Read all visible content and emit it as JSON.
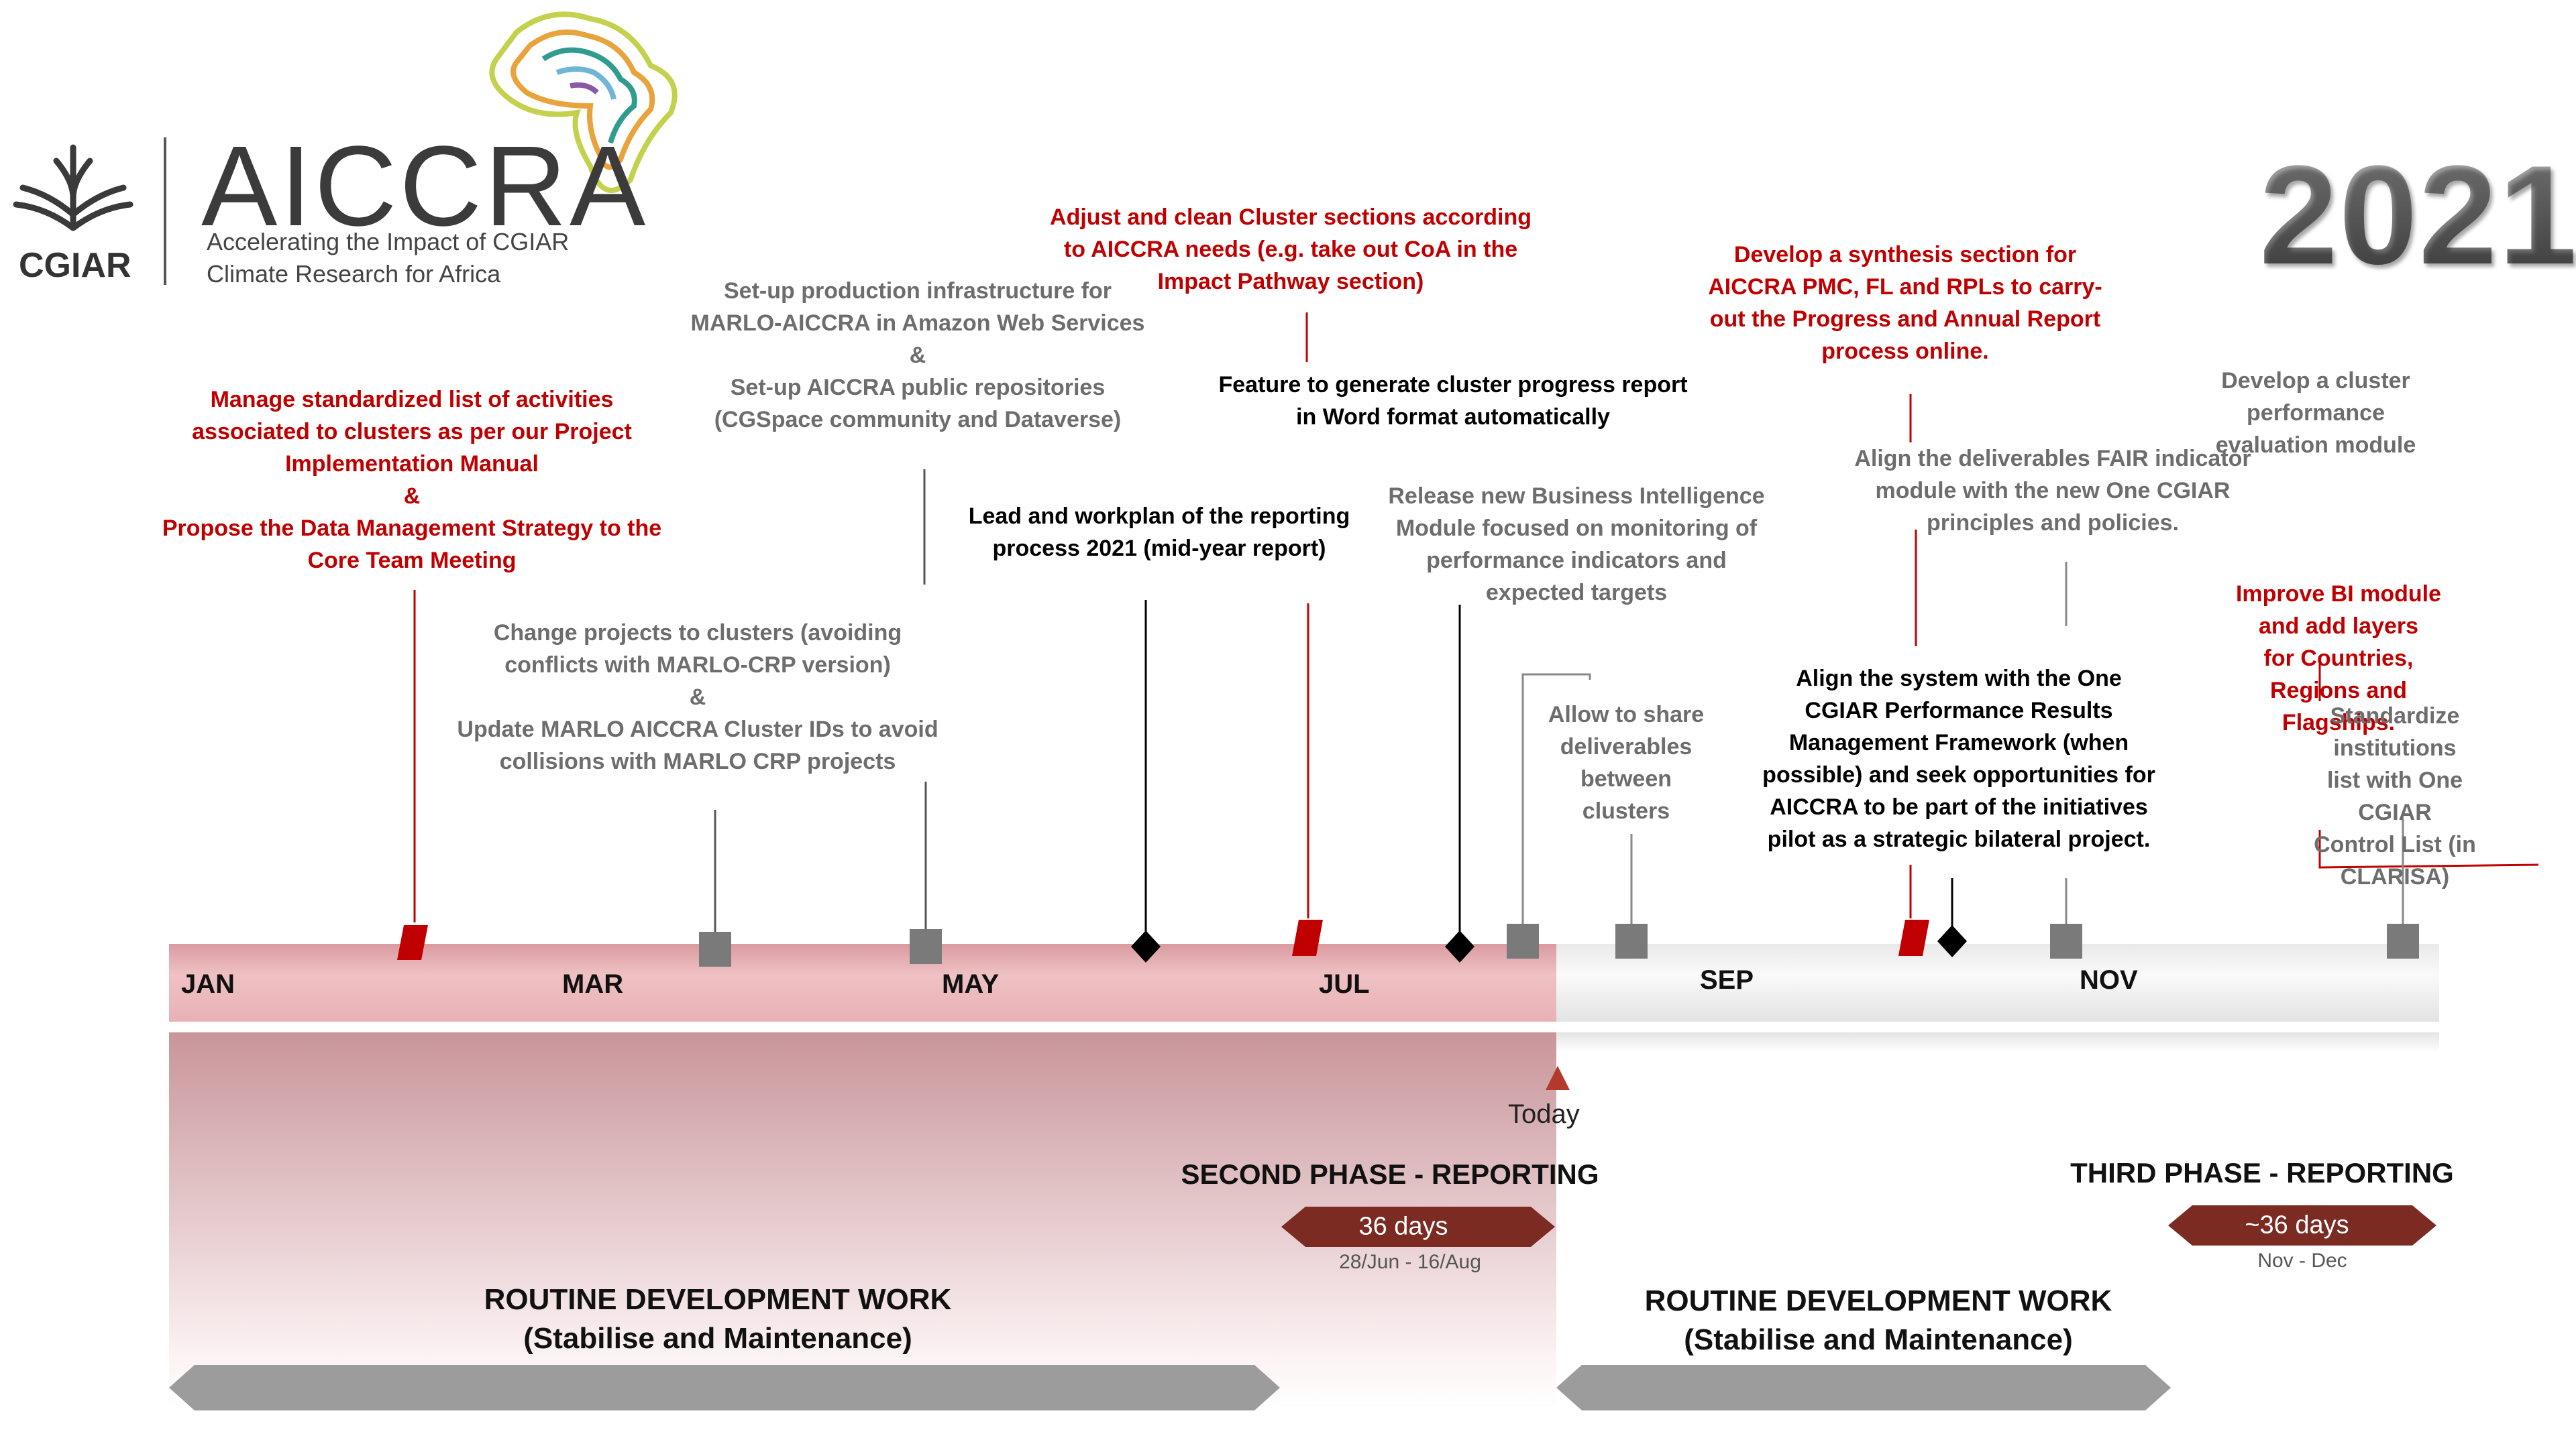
{
  "brand": {
    "cgiar": "CGIAR",
    "name": "AICCRA",
    "tagline1": "Accelerating the Impact of CGIAR",
    "tagline2": "Climate Research for Africa"
  },
  "year": "2021",
  "months": [
    "JAN",
    "MAR",
    "MAY",
    "JUL",
    "SEP",
    "NOV"
  ],
  "today_label": "Today",
  "annotations": [
    {
      "id": "a1",
      "color": "red",
      "text": "Manage standardized list of activities\nassociated to clusters as per our Project\nImplementation Manual\n&\nPropose the Data Management Strategy to the\nCore Team Meeting"
    },
    {
      "id": "a2",
      "color": "gray",
      "text": "Change projects to clusters (avoiding\nconflicts with MARLO-CRP version)\n&\nUpdate MARLO AICCRA Cluster IDs to avoid\ncollisions with MARLO CRP projects"
    },
    {
      "id": "a3",
      "color": "gray",
      "text": "Set-up production infrastructure for\nMARLO-AICCRA in Amazon Web Services\n&\nSet-up AICCRA public repositories\n(CGSpace community and Dataverse)"
    },
    {
      "id": "a4",
      "color": "black",
      "text": "Lead and workplan of the reporting\nprocess 2021 (mid-year report)"
    },
    {
      "id": "a5",
      "color": "red",
      "text": "Adjust and clean Cluster sections according\nto AICCRA needs (e.g. take out CoA in the\nImpact Pathway section)"
    },
    {
      "id": "a6",
      "color": "black",
      "text": "Feature to generate cluster progress report\nin Word format automatically"
    },
    {
      "id": "a7",
      "color": "gray",
      "text": "Release new Business Intelligence\nModule focused on monitoring of\nperformance indicators and\nexpected targets"
    },
    {
      "id": "a8",
      "color": "gray",
      "text": "Allow to share\ndeliverables\nbetween\nclusters"
    },
    {
      "id": "a9",
      "color": "red",
      "text": "Develop a synthesis section for\nAICCRA PMC, FL and RPLs to carry-\nout the Progress and Annual Report\nprocess online."
    },
    {
      "id": "a10",
      "color": "black",
      "text": "Align the system with the One\nCGIAR Performance Results\nManagement Framework (when\npossible) and seek opportunities for\nAICCRA to be part of the initiatives\npilot as a strategic bilateral project."
    },
    {
      "id": "a11",
      "color": "gray",
      "text": "Align the deliverables FAIR indicator\nmodule with the new One CGIAR\nprinciples and policies."
    },
    {
      "id": "a12",
      "color": "gray",
      "text": "Develop a cluster performance\nevaluation module"
    },
    {
      "id": "a13",
      "color": "red",
      "text": "Improve BI module and add layers\nfor Countries, Regions and Flagships."
    },
    {
      "id": "a14",
      "color": "gray",
      "text": "Standardize institutions\nlist with One CGIAR\nControl List (in CLARISA)"
    }
  ],
  "phases": {
    "second": {
      "title": "SECOND PHASE - REPORTING",
      "duration": "36 days",
      "dates": "28/Jun - 16/Aug"
    },
    "third": {
      "title": "THIRD PHASE - REPORTING",
      "duration": "~36 days",
      "dates": "Nov - Dec"
    }
  },
  "routine": {
    "title": "ROUTINE DEVELOPMENT WORK",
    "subtitle": "(Stabilise and Maintenance)"
  },
  "colors": {
    "red": "#c00000",
    "gray_text": "#6d6d6d",
    "marker_gray": "#7a7a7a",
    "band_past": "#e8b4b8",
    "band_future": "#eeeeee",
    "phase_arrow": "#7b2b22",
    "routine_arrow": "#9c9c9c"
  }
}
